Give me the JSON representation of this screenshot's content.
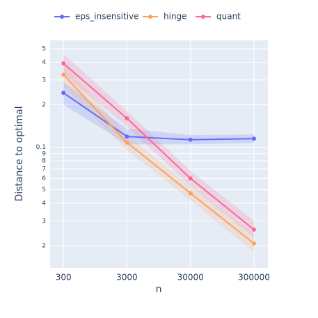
{
  "chart_data": {
    "type": "line",
    "xlabel": "n",
    "ylabel": "Distance to optimal",
    "x": [
      300,
      3000,
      30000,
      300000
    ],
    "xlog": true,
    "ylog": true,
    "xlim": [
      185,
      497000
    ],
    "ylim": [
      0.0139,
      0.573
    ],
    "xticks": [
      300,
      3000,
      30000,
      300000
    ],
    "yticks": [
      {
        "value": 0.5,
        "label": "5"
      },
      {
        "value": 0.4,
        "label": "4"
      },
      {
        "value": 0.3,
        "label": "3"
      },
      {
        "value": 0.2,
        "label": "2"
      },
      0.1,
      {
        "value": 0.09,
        "label": "9"
      },
      {
        "value": 0.08,
        "label": "8"
      },
      {
        "value": 0.07,
        "label": "7"
      },
      {
        "value": 0.06,
        "label": "6"
      },
      {
        "value": 0.05,
        "label": "5"
      },
      {
        "value": 0.04,
        "label": "4"
      },
      {
        "value": 0.03,
        "label": "3"
      },
      {
        "value": 0.02,
        "label": "2"
      }
    ],
    "grid": true,
    "legend": "top",
    "series": [
      {
        "name": "eps_insensitive",
        "color": "#636efa",
        "values": [
          0.243,
          0.119,
          0.113,
          0.115
        ],
        "lower": [
          0.2,
          0.105,
          0.105,
          0.107
        ],
        "upper": [
          0.29,
          0.135,
          0.122,
          0.123
        ]
      },
      {
        "name": "hinge",
        "color": "#ffa15a",
        "values": [
          0.327,
          0.108,
          0.0471,
          0.0207
        ],
        "lower": [
          0.27,
          0.095,
          0.042,
          0.018
        ],
        "upper": [
          0.39,
          0.122,
          0.053,
          0.024
        ]
      },
      {
        "name": "quant",
        "color": "#ff6692",
        "values": [
          0.393,
          0.16,
          0.06,
          0.026
        ],
        "lower": [
          0.33,
          0.14,
          0.053,
          0.023
        ],
        "upper": [
          0.46,
          0.18,
          0.068,
          0.03
        ]
      }
    ]
  }
}
